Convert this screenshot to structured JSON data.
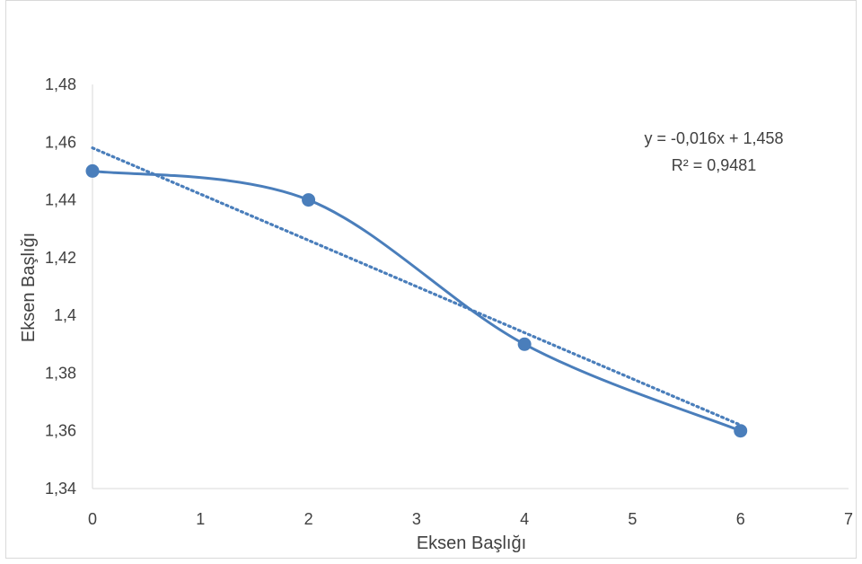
{
  "chart_data": {
    "type": "scatter",
    "xlabel": "Eksen Başlığı",
    "ylabel": "Eksen Başlığı",
    "xlim": [
      0,
      7
    ],
    "ylim": [
      1.34,
      1.48
    ],
    "x_ticks": [
      "0",
      "1",
      "2",
      "3",
      "4",
      "5",
      "6",
      "7"
    ],
    "y_ticks": [
      "1,34",
      "1,36",
      "1,38",
      "1,4",
      "1,42",
      "1,44",
      "1,46",
      "1,48"
    ],
    "grid": false,
    "smooth_line": true,
    "series": [
      {
        "x": [
          0,
          2,
          4,
          6
        ],
        "y": [
          1.45,
          1.44,
          1.39,
          1.36
        ],
        "color": "#4a7ebb"
      }
    ],
    "trendline": {
      "type": "linear",
      "slope": -0.016,
      "intercept": 1.458,
      "style": "dotted",
      "color": "#4a7ebb",
      "equation": "y = -0,016x + 1,458",
      "r_squared": "R² = 0,9481"
    }
  }
}
